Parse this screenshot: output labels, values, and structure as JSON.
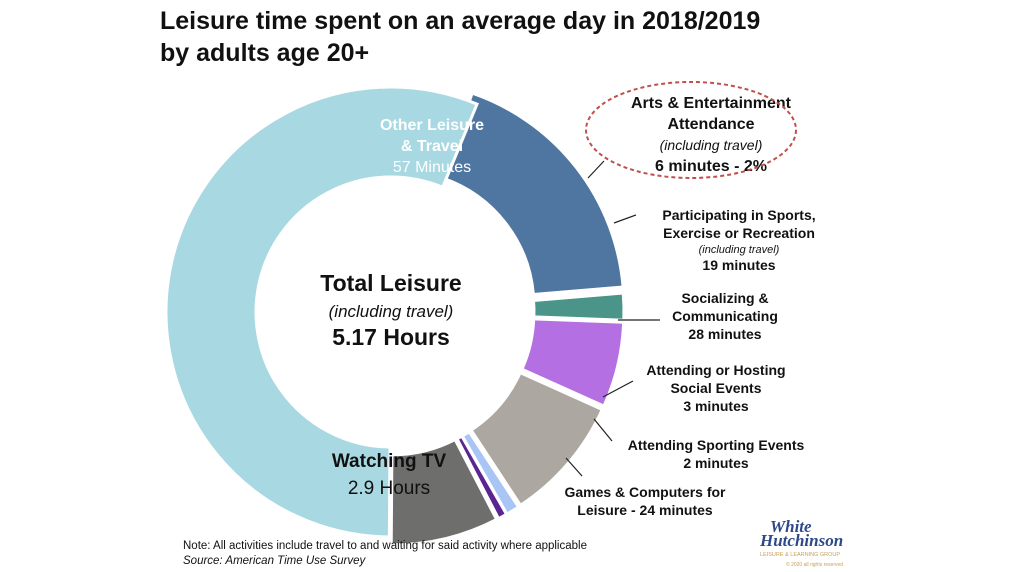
{
  "chart_data": {
    "type": "pie",
    "title": "Leisure time spent on an average day in 2018/2019",
    "title_line2": "by adults age 20+",
    "center": {
      "title": "Total Leisure",
      "subtitle": "(including travel)",
      "value": "5.17 Hours"
    },
    "total_minutes": 310,
    "slices": [
      {
        "key": "other",
        "value": 57,
        "color": "#4f76a1",
        "label_lines": [
          "Other Leisure",
          "& Travel"
        ],
        "value_label": "57 Minutes"
      },
      {
        "key": "arts",
        "value": 6,
        "color": "#4a948a",
        "label_lines": [
          "Arts & Entertainment",
          "Attendance"
        ],
        "sub_label": "(including travel)",
        "value_label": "6 minutes - 2%"
      },
      {
        "key": "sports",
        "value": 19,
        "color": "#b46fe3",
        "label_lines": [
          "Participating in Sports,",
          "Exercise or Recreation"
        ],
        "sub_label": "(including travel)",
        "value_label": "19 minutes"
      },
      {
        "key": "social",
        "value": 28,
        "color": "#aca7a1",
        "label_lines": [
          "Socializing &",
          "Communicating"
        ],
        "value_label": "28 minutes"
      },
      {
        "key": "hosting",
        "value": 3,
        "color": "#a9c5f6",
        "label_lines": [
          "Attending or Hosting",
          "Social Events"
        ],
        "value_label": "3 minutes"
      },
      {
        "key": "sporting",
        "value": 2,
        "color": "#5a2491",
        "label_lines": [
          "Attending Sporting Events"
        ],
        "value_label": "2 minutes"
      },
      {
        "key": "games",
        "value": 24,
        "color": "#6e6e6c",
        "label_lines": [
          "Games & Computers for"
        ],
        "value_label": "Leisure - 24 minutes"
      },
      {
        "key": "tv",
        "value": 174,
        "color": "#a8d8e2",
        "label_lines": [
          "Watching TV"
        ],
        "value_label": "2.9 Hours"
      }
    ]
  },
  "footer": {
    "note": "Note: All activities include travel to and waiting for said activity where applicable",
    "source": "Source: American Time Use Survey"
  },
  "logo": {
    "line1": "White",
    "line2": "Hutchinson",
    "tagline": "LEISURE & LEARNING GROUP",
    "copyright": "© 2020 all rights reserved"
  }
}
